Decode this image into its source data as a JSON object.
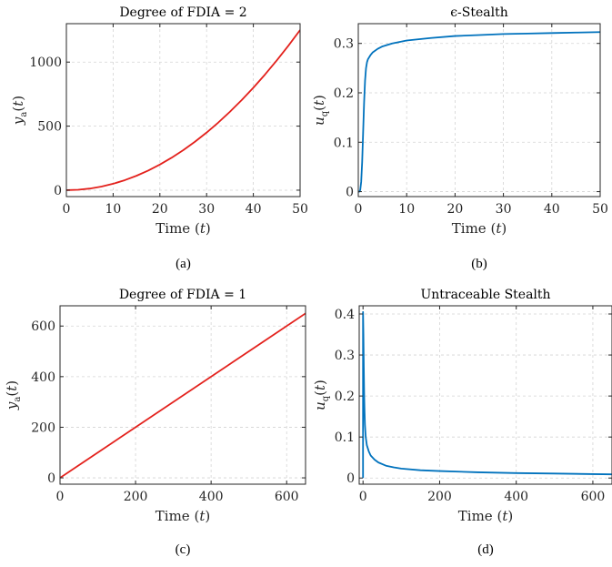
{
  "chart_data": [
    {
      "type": "line",
      "panel": "a",
      "caption": "(a)",
      "title": "Degree of FDIA = 2",
      "xlabel": "Time (t)",
      "ylabel": "ya(t)",
      "xlim": [
        0,
        50
      ],
      "ylim": [
        -50,
        1300
      ],
      "xticks": [
        0,
        10,
        20,
        30,
        40,
        50
      ],
      "yticks": [
        0,
        500,
        1000
      ],
      "grid": true,
      "series": [
        {
          "color": "#e3211c",
          "x": [
            0,
            2.5,
            5,
            7.5,
            10,
            12.5,
            15,
            17.5,
            20,
            22.5,
            25,
            27.5,
            30,
            32.5,
            35,
            37.5,
            40,
            42.5,
            45,
            47.5,
            50
          ],
          "y": [
            0,
            3.1,
            12.5,
            28.1,
            50,
            78.1,
            112.5,
            153.1,
            200,
            253.1,
            312.5,
            378.1,
            450,
            528.1,
            612.5,
            703.1,
            800,
            903.1,
            1012.5,
            1128.1,
            1250
          ]
        }
      ]
    },
    {
      "type": "line",
      "panel": "b",
      "caption": "(b)",
      "title": "ϵ-Stealth",
      "xlabel": "Time (t)",
      "ylabel": "uq(t)",
      "xlim": [
        0,
        50
      ],
      "ylim": [
        -0.01,
        0.34
      ],
      "xticks": [
        0,
        10,
        20,
        30,
        40,
        50
      ],
      "yticks": [
        0,
        0.1,
        0.2,
        0.3
      ],
      "grid": true,
      "series": [
        {
          "color": "#0072bd",
          "x": [
            0,
            0.2,
            0.4,
            0.6,
            0.8,
            1.0,
            1.2,
            1.4,
            1.6,
            1.8,
            2.0,
            2.5,
            3,
            4,
            5,
            7,
            10,
            15,
            20,
            25,
            30,
            35,
            40,
            45,
            50
          ],
          "y": [
            0,
            0.0,
            0.003,
            0.02,
            0.06,
            0.12,
            0.18,
            0.225,
            0.25,
            0.262,
            0.268,
            0.276,
            0.282,
            0.289,
            0.294,
            0.3,
            0.306,
            0.311,
            0.315,
            0.317,
            0.319,
            0.32,
            0.321,
            0.322,
            0.323
          ]
        }
      ]
    },
    {
      "type": "line",
      "panel": "c",
      "caption": "(c)",
      "title": "Degree of FDIA = 1",
      "xlabel": "Time (t)",
      "ylabel": "ya(t)",
      "xlim": [
        0,
        650
      ],
      "ylim": [
        -25,
        680
      ],
      "xticks": [
        0,
        200,
        400,
        600
      ],
      "yticks": [
        0,
        200,
        400,
        600
      ],
      "grid": true,
      "series": [
        {
          "color": "#e3211c",
          "x": [
            0,
            650
          ],
          "y": [
            0,
            650
          ]
        }
      ]
    },
    {
      "type": "line",
      "panel": "d",
      "caption": "(d)",
      "title": "Untraceable Stealth",
      "xlabel": "Time (t)",
      "ylabel": "uq(t)",
      "xlim": [
        -10,
        650
      ],
      "ylim": [
        -0.015,
        0.42
      ],
      "xticks": [
        0,
        200,
        400,
        600
      ],
      "yticks": [
        0,
        0.1,
        0.2,
        0.3,
        0.4
      ],
      "grid": true,
      "series": [
        {
          "color": "#0072bd",
          "x": [
            0,
            0,
            1,
            2,
            3,
            4,
            5,
            7,
            10,
            15,
            20,
            30,
            40,
            60,
            80,
            100,
            150,
            200,
            300,
            400,
            500,
            600,
            650
          ],
          "y": [
            0,
            0.405,
            0.35,
            0.27,
            0.2,
            0.16,
            0.13,
            0.1,
            0.08,
            0.065,
            0.055,
            0.045,
            0.038,
            0.03,
            0.026,
            0.023,
            0.019,
            0.017,
            0.014,
            0.012,
            0.011,
            0.0095,
            0.009
          ]
        }
      ]
    }
  ]
}
